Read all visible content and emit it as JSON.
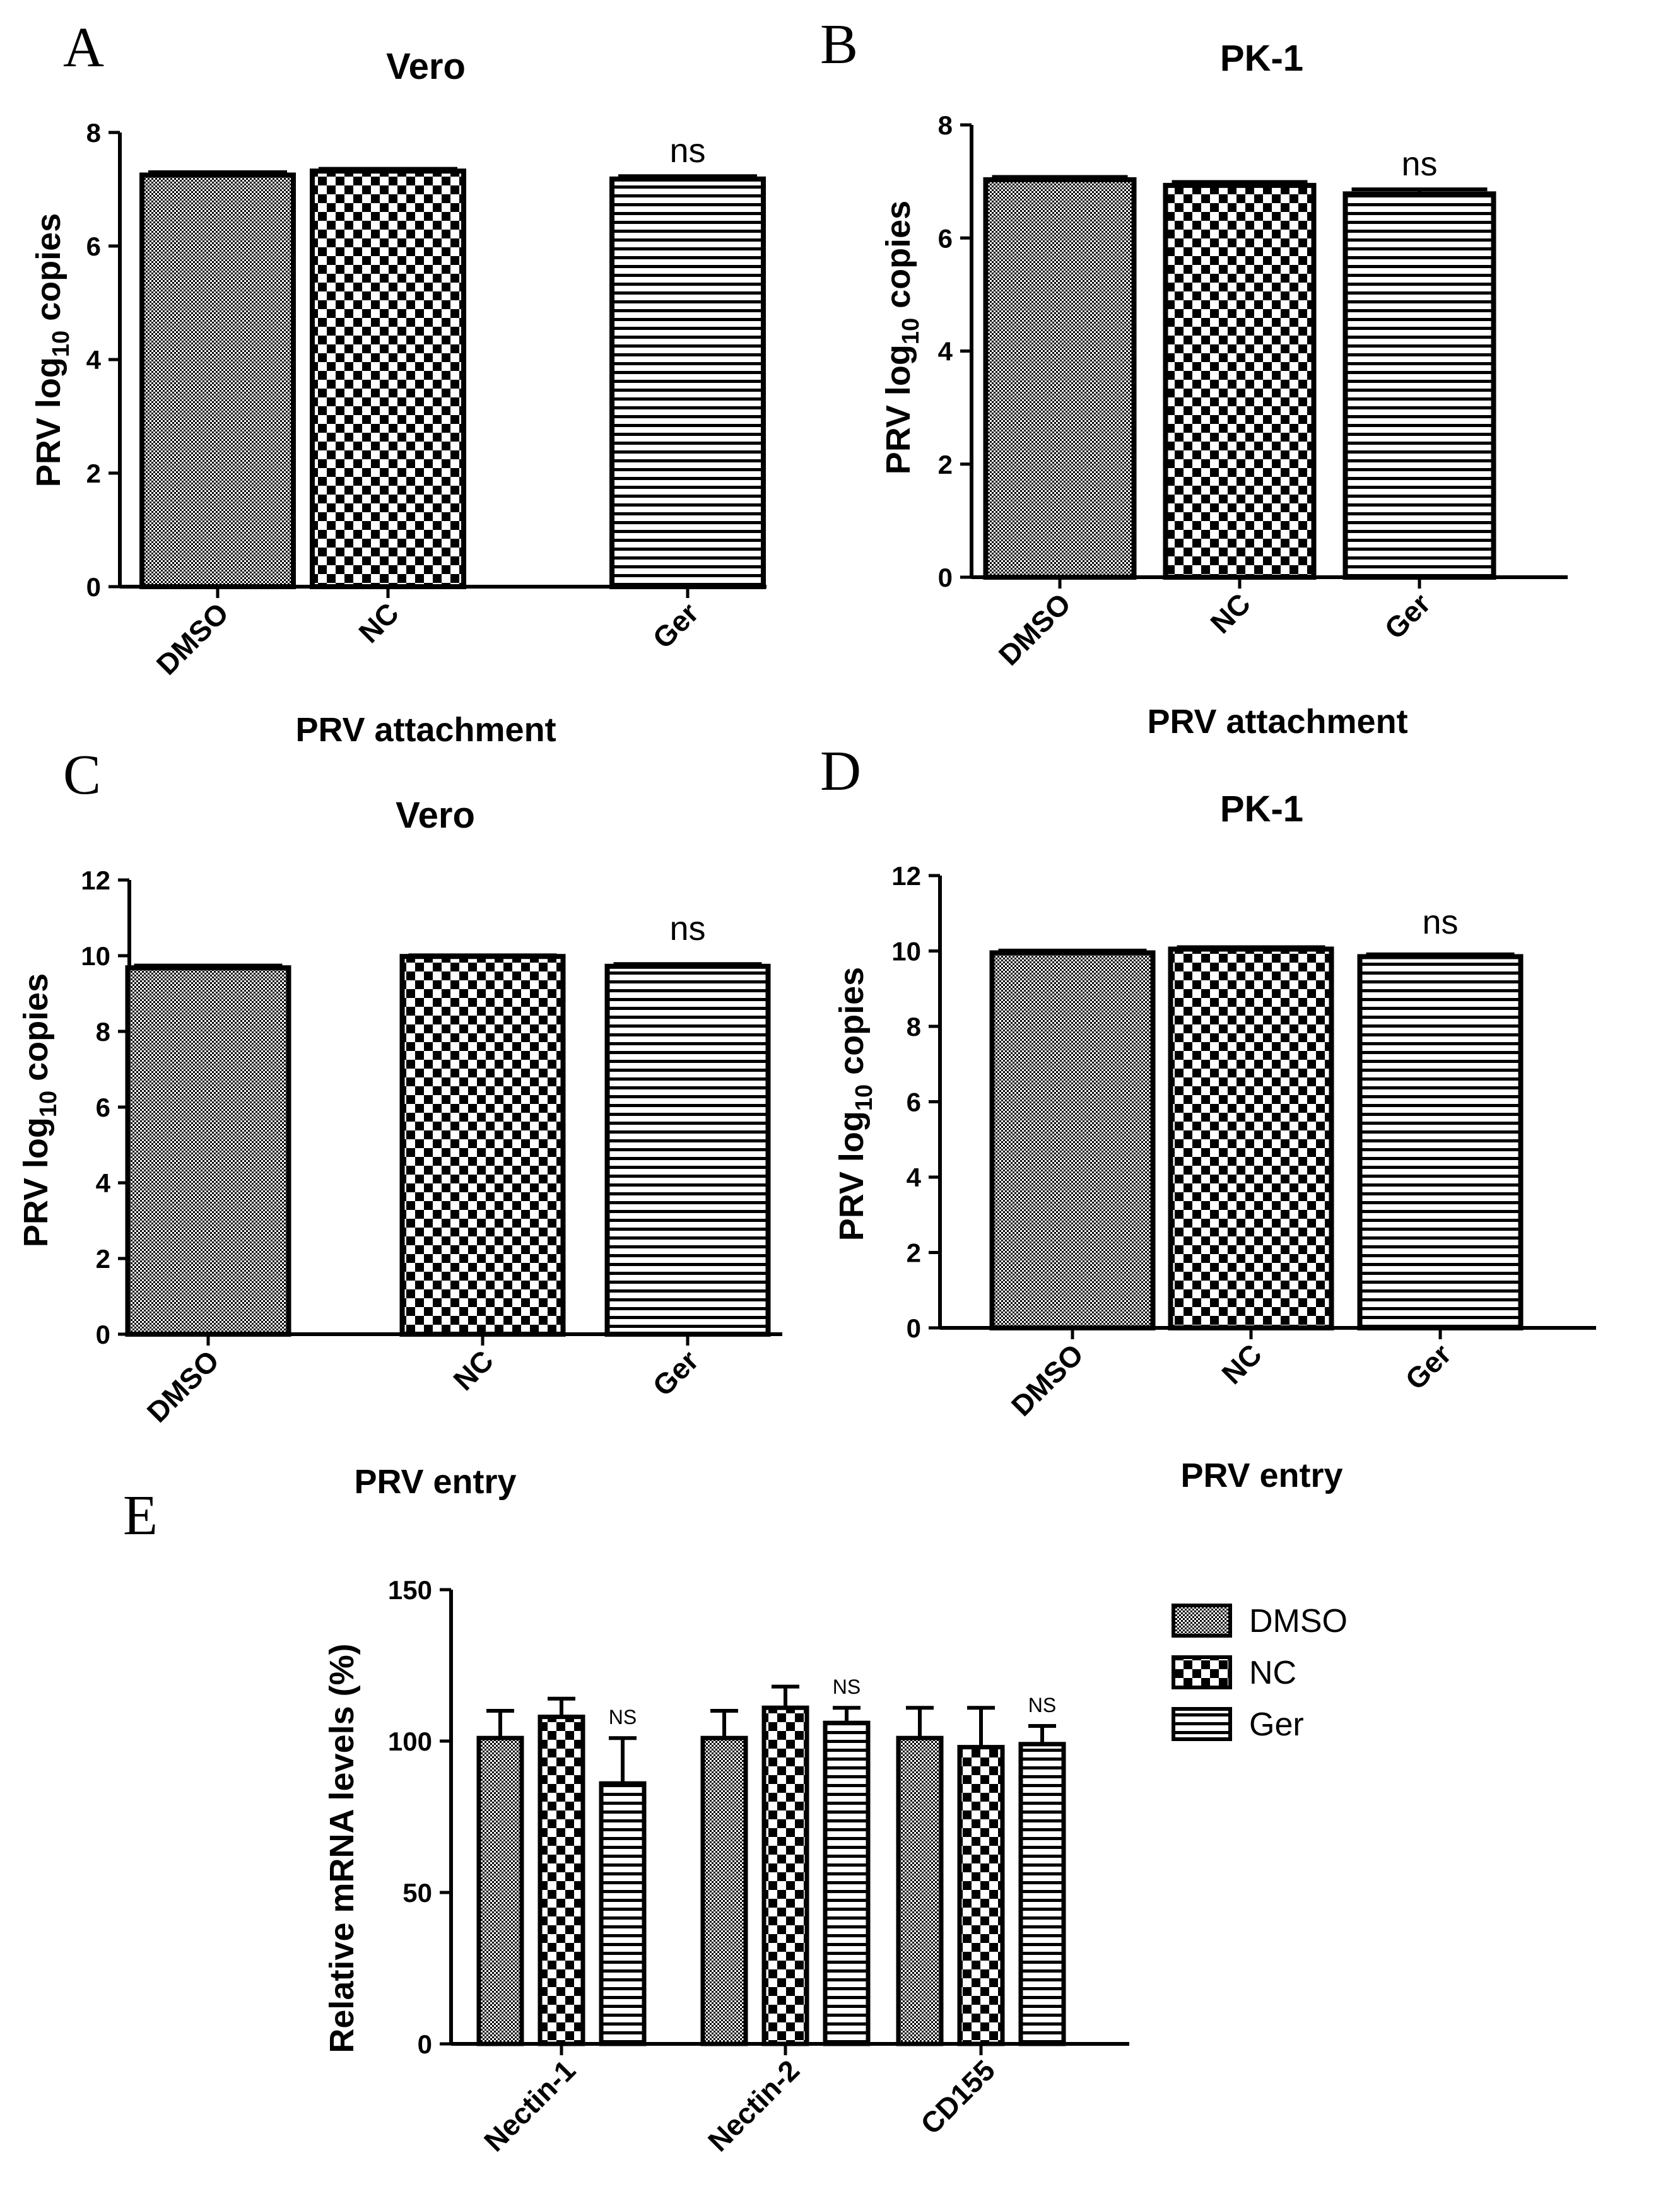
{
  "chart_data": [
    {
      "panel": "A",
      "type": "bar",
      "title": "Vero",
      "xlabel": "PRV attachment",
      "ylabel_prefix": "PRV log",
      "ylabel_sub": "10",
      "ylabel_suffix": " copies",
      "categories": [
        "DMSO",
        "NC",
        "Ger"
      ],
      "values": [
        7.25,
        7.32,
        7.18
      ],
      "errors": [
        0.05,
        0.04,
        0.05
      ],
      "patterns": [
        "dots",
        "checker",
        "hlines"
      ],
      "significance": [
        "",
        "",
        "ns"
      ],
      "ylim": [
        0,
        8
      ],
      "yticks": [
        0,
        2,
        4,
        6,
        8
      ]
    },
    {
      "panel": "B",
      "type": "bar",
      "title": "PK-1",
      "xlabel": "PRV attachment",
      "ylabel_prefix": "PRV log",
      "ylabel_sub": "10",
      "ylabel_suffix": " copies",
      "categories": [
        "DMSO",
        "NC",
        "Ger"
      ],
      "values": [
        7.03,
        6.93,
        6.78
      ],
      "errors": [
        0.05,
        0.06,
        0.08
      ],
      "patterns": [
        "dots",
        "checker",
        "hlines"
      ],
      "significance": [
        "",
        "",
        "ns"
      ],
      "ylim": [
        0,
        8
      ],
      "yticks": [
        0,
        2,
        4,
        6,
        8
      ]
    },
    {
      "panel": "C",
      "type": "bar",
      "title": "Vero",
      "xlabel": "PRV entry",
      "ylabel_prefix": "PRV log",
      "ylabel_sub": "10",
      "ylabel_suffix": " copies",
      "categories": [
        "DMSO",
        "NC",
        "Ger"
      ],
      "values": [
        9.68,
        9.98,
        9.72
      ],
      "errors": [
        0.06,
        0.03,
        0.06
      ],
      "patterns": [
        "dots",
        "checker",
        "hlines"
      ],
      "significance": [
        "",
        "",
        "ns"
      ],
      "ylim": [
        0,
        12
      ],
      "yticks": [
        0,
        2,
        4,
        6,
        8,
        10,
        12
      ]
    },
    {
      "panel": "D",
      "type": "bar",
      "title": "PK-1",
      "xlabel": "PRV entry",
      "ylabel_prefix": "PRV log",
      "ylabel_sub": "10",
      "ylabel_suffix": " copies",
      "categories": [
        "DMSO",
        "NC",
        "Ger"
      ],
      "values": [
        9.95,
        10.05,
        9.85
      ],
      "errors": [
        0.06,
        0.05,
        0.06
      ],
      "patterns": [
        "dots",
        "checker",
        "hlines"
      ],
      "significance": [
        "",
        "",
        "ns"
      ],
      "ylim": [
        0,
        12
      ],
      "yticks": [
        0,
        2,
        4,
        6,
        8,
        10,
        12
      ]
    },
    {
      "panel": "E",
      "type": "bar",
      "title": "",
      "xlabel": "",
      "ylabel": "Relative mRNA levels (%)",
      "categories": [
        "Nectin-1",
        "Nectin-2",
        "CD155"
      ],
      "series": [
        {
          "name": "DMSO",
          "pattern": "dots",
          "values": [
            101,
            101,
            101
          ],
          "errors": [
            9,
            9,
            10
          ]
        },
        {
          "name": "NC",
          "pattern": "checker",
          "values": [
            108,
            111,
            98
          ],
          "errors": [
            6,
            7,
            13
          ]
        },
        {
          "name": "Ger",
          "pattern": "hlines",
          "values": [
            86,
            106,
            99
          ],
          "errors": [
            15,
            5,
            6
          ]
        }
      ],
      "significance": [
        "NS",
        "NS",
        "NS"
      ],
      "ylim": [
        0,
        150
      ],
      "yticks": [
        0,
        50,
        100,
        150
      ],
      "legend_position": "top-right"
    }
  ]
}
